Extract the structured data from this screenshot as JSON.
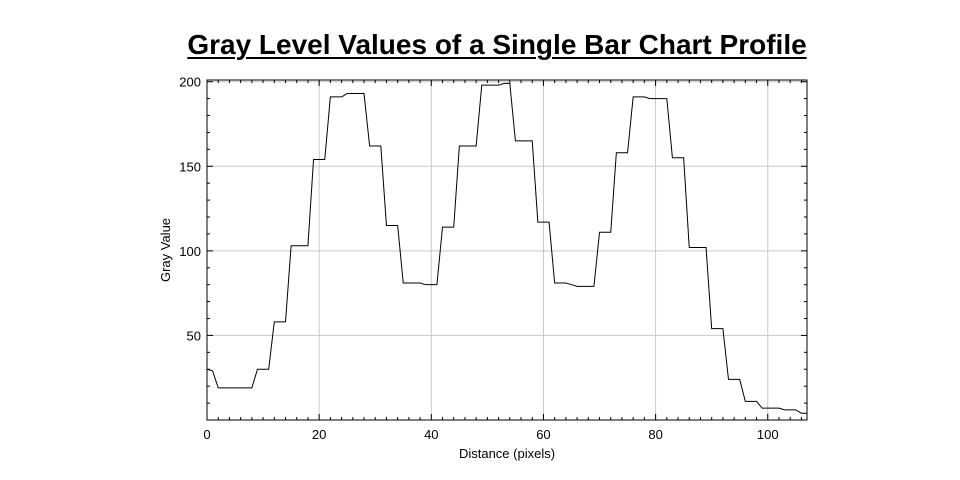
{
  "chart_data": {
    "type": "line",
    "title": "Gray Level Values of a Single Bar Chart Profile",
    "xlabel": "Distance (pixels)",
    "ylabel": "Gray Value",
    "xlim": [
      0,
      107
    ],
    "ylim": [
      0,
      201
    ],
    "xticks": [
      0,
      20,
      40,
      60,
      80,
      100
    ],
    "yticks": [
      50,
      100,
      150,
      200
    ],
    "grid": true,
    "series": [
      {
        "color": "#000000",
        "x": [
          0,
          1,
          2,
          3,
          4,
          5,
          6,
          7,
          8,
          9,
          10,
          11,
          12,
          13,
          14,
          15,
          16,
          17,
          18,
          19,
          20,
          21,
          22,
          23,
          24,
          25,
          26,
          27,
          28,
          29,
          30,
          31,
          32,
          33,
          34,
          35,
          36,
          37,
          38,
          39,
          40,
          41,
          42,
          43,
          44,
          45,
          46,
          47,
          48,
          49,
          50,
          51,
          52,
          53,
          54,
          55,
          56,
          57,
          58,
          59,
          60,
          61,
          62,
          63,
          64,
          65,
          66,
          67,
          68,
          69,
          70,
          71,
          72,
          73,
          74,
          75,
          76,
          77,
          78,
          79,
          80,
          81,
          82,
          83,
          84,
          85,
          86,
          87,
          88,
          89,
          90,
          91,
          92,
          93,
          94,
          95,
          96,
          97,
          98,
          99,
          100,
          101,
          102,
          103,
          104,
          105,
          106,
          107
        ],
        "y": [
          30,
          29,
          19,
          19,
          19,
          19,
          19,
          19,
          19,
          30,
          30,
          30,
          58,
          58,
          58,
          103,
          103,
          103,
          103,
          154,
          154,
          154,
          191,
          191,
          191,
          193,
          193,
          193,
          193,
          162,
          162,
          162,
          115,
          115,
          115,
          81,
          81,
          81,
          81,
          80,
          80,
          80,
          114,
          114,
          114,
          162,
          162,
          162,
          162,
          198,
          198,
          198,
          198,
          199,
          199,
          165,
          165,
          165,
          165,
          117,
          117,
          117,
          81,
          81,
          81,
          80,
          79,
          79,
          79,
          79,
          111,
          111,
          111,
          158,
          158,
          158,
          191,
          191,
          191,
          190,
          190,
          190,
          190,
          155,
          155,
          155,
          102,
          102,
          102,
          102,
          54,
          54,
          54,
          24,
          24,
          24,
          11,
          11,
          11,
          7,
          7,
          7,
          7,
          6,
          6,
          6,
          4,
          4
        ]
      }
    ]
  }
}
